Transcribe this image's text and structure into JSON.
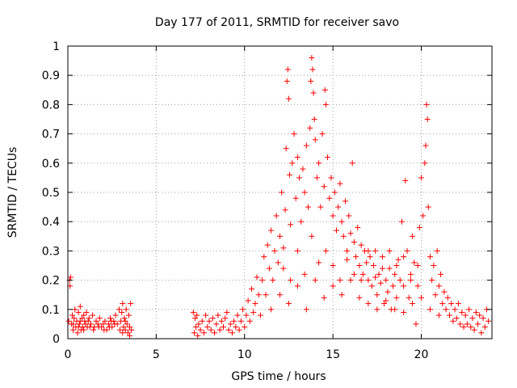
{
  "chart_data": {
    "type": "scatter",
    "title": "Day 177 of 2011, SRMTID for receiver savo",
    "xlabel": "GPS time / hours",
    "ylabel": "SRMTID / TECUs",
    "xlim": [
      0,
      24
    ],
    "ylim": [
      0,
      1
    ],
    "xticks": [
      0,
      5,
      10,
      15,
      20
    ],
    "yticks": [
      0,
      0.1,
      0.2,
      0.3,
      0.4,
      0.5,
      0.6,
      0.7,
      0.8,
      0.9,
      1
    ],
    "grid": true,
    "marker": "+",
    "color": "#ff0000",
    "series": [
      {
        "name": "SRMTID",
        "points": [
          [
            0.05,
            0.06
          ],
          [
            0.1,
            0.2
          ],
          [
            0.12,
            0.18
          ],
          [
            0.15,
            0.21
          ],
          [
            0.2,
            0.05
          ],
          [
            0.25,
            0.08
          ],
          [
            0.3,
            0.03
          ],
          [
            0.35,
            0.07
          ],
          [
            0.4,
            0.1
          ],
          [
            0.45,
            0.04
          ],
          [
            0.5,
            0.06
          ],
          [
            0.55,
            0.02
          ],
          [
            0.6,
            0.09
          ],
          [
            0.65,
            0.05
          ],
          [
            0.7,
            0.11
          ],
          [
            0.75,
            0.03
          ],
          [
            0.8,
            0.07
          ],
          [
            0.85,
            0.04
          ],
          [
            0.9,
            0.08
          ],
          [
            0.95,
            0.06
          ],
          [
            1.0,
            0.05
          ],
          [
            1.05,
            0.09
          ],
          [
            1.1,
            0.04
          ],
          [
            1.2,
            0.07
          ],
          [
            1.3,
            0.05
          ],
          [
            1.4,
            0.08
          ],
          [
            1.5,
            0.04
          ],
          [
            1.6,
            0.06
          ],
          [
            1.7,
            0.05
          ],
          [
            1.8,
            0.07
          ],
          [
            1.9,
            0.04
          ],
          [
            2.0,
            0.05
          ],
          [
            2.1,
            0.06
          ],
          [
            2.2,
            0.03
          ],
          [
            2.3,
            0.05
          ],
          [
            2.4,
            0.07
          ],
          [
            2.5,
            0.04
          ],
          [
            2.6,
            0.06
          ],
          [
            2.7,
            0.08
          ],
          [
            2.8,
            0.05
          ],
          [
            2.9,
            0.1
          ],
          [
            3.0,
            0.06
          ],
          [
            3.05,
            0.09
          ],
          [
            3.1,
            0.12
          ],
          [
            3.15,
            0.04
          ],
          [
            3.2,
            0.07
          ],
          [
            3.25,
            0.03
          ],
          [
            3.3,
            0.1
          ],
          [
            3.35,
            0.05
          ],
          [
            3.4,
            0.02
          ],
          [
            3.45,
            0.08
          ],
          [
            3.5,
            0.01
          ],
          [
            3.55,
            0.12
          ],
          [
            3.6,
            0.03
          ],
          [
            0.3,
            0.05
          ],
          [
            0.6,
            0.04
          ],
          [
            0.9,
            0.03
          ],
          [
            1.15,
            0.06
          ],
          [
            1.45,
            0.03
          ],
          [
            1.75,
            0.04
          ],
          [
            2.05,
            0.03
          ],
          [
            2.35,
            0.04
          ],
          [
            2.65,
            0.05
          ],
          [
            2.95,
            0.03
          ],
          [
            3.25,
            0.06
          ],
          [
            3.5,
            0.04
          ],
          [
            0.7,
            0.06
          ],
          [
            1.25,
            0.04
          ],
          [
            2.45,
            0.06
          ],
          [
            3.1,
            0.02
          ],
          [
            7.1,
            0.09
          ],
          [
            7.15,
            0.02
          ],
          [
            7.2,
            0.07
          ],
          [
            7.25,
            0.04
          ],
          [
            7.3,
            0.08
          ],
          [
            7.35,
            0.01
          ],
          [
            7.4,
            0.05
          ],
          [
            7.5,
            0.03
          ],
          [
            7.6,
            0.06
          ],
          [
            7.7,
            0.02
          ],
          [
            7.8,
            0.08
          ],
          [
            7.9,
            0.04
          ],
          [
            8.0,
            0.06
          ],
          [
            8.1,
            0.03
          ],
          [
            8.2,
            0.07
          ],
          [
            8.3,
            0.02
          ],
          [
            8.4,
            0.05
          ],
          [
            8.5,
            0.08
          ],
          [
            8.6,
            0.03
          ],
          [
            8.7,
            0.06
          ],
          [
            8.8,
            0.04
          ],
          [
            8.9,
            0.07
          ],
          [
            9.0,
            0.09
          ],
          [
            9.1,
            0.03
          ],
          [
            9.2,
            0.05
          ],
          [
            9.3,
            0.02
          ],
          [
            9.4,
            0.06
          ],
          [
            9.5,
            0.04
          ],
          [
            9.6,
            0.08
          ],
          [
            9.7,
            0.03
          ],
          [
            9.8,
            0.06
          ],
          [
            9.9,
            0.1
          ],
          [
            10.0,
            0.04
          ],
          [
            10.1,
            0.08
          ],
          [
            10.2,
            0.13
          ],
          [
            10.3,
            0.06
          ],
          [
            10.4,
            0.17
          ],
          [
            10.5,
            0.09
          ],
          [
            10.6,
            0.12
          ],
          [
            10.7,
            0.21
          ],
          [
            10.8,
            0.15
          ],
          [
            10.9,
            0.08
          ],
          [
            11.0,
            0.2
          ],
          [
            11.1,
            0.28
          ],
          [
            11.2,
            0.15
          ],
          [
            11.3,
            0.32
          ],
          [
            11.4,
            0.24
          ],
          [
            11.5,
            0.37
          ],
          [
            11.6,
            0.2
          ],
          [
            11.7,
            0.3
          ],
          [
            11.8,
            0.42
          ],
          [
            11.9,
            0.26
          ],
          [
            12.0,
            0.35
          ],
          [
            12.1,
            0.5
          ],
          [
            12.2,
            0.31
          ],
          [
            12.3,
            0.44
          ],
          [
            12.35,
            0.65
          ],
          [
            12.4,
            0.88
          ],
          [
            12.45,
            0.92
          ],
          [
            12.5,
            0.82
          ],
          [
            12.55,
            0.56
          ],
          [
            12.6,
            0.39
          ],
          [
            12.7,
            0.6
          ],
          [
            12.8,
            0.7
          ],
          [
            12.9,
            0.48
          ],
          [
            13.0,
            0.62
          ],
          [
            13.1,
            0.55
          ],
          [
            13.2,
            0.4
          ],
          [
            13.3,
            0.58
          ],
          [
            13.4,
            0.5
          ],
          [
            13.5,
            0.66
          ],
          [
            13.6,
            0.45
          ],
          [
            13.7,
            0.72
          ],
          [
            13.75,
            0.88
          ],
          [
            13.8,
            0.96
          ],
          [
            13.85,
            0.92
          ],
          [
            13.9,
            0.84
          ],
          [
            13.95,
            0.75
          ],
          [
            14.0,
            0.68
          ],
          [
            14.1,
            0.55
          ],
          [
            14.2,
            0.6
          ],
          [
            14.3,
            0.45
          ],
          [
            14.4,
            0.7
          ],
          [
            14.5,
            0.52
          ],
          [
            14.55,
            0.85
          ],
          [
            14.6,
            0.8
          ],
          [
            14.7,
            0.62
          ],
          [
            14.8,
            0.48
          ],
          [
            14.9,
            0.55
          ],
          [
            15.0,
            0.42
          ],
          [
            15.1,
            0.5
          ],
          [
            15.2,
            0.37
          ],
          [
            15.3,
            0.45
          ],
          [
            15.4,
            0.53
          ],
          [
            15.5,
            0.4
          ],
          [
            15.6,
            0.35
          ],
          [
            15.7,
            0.47
          ],
          [
            15.8,
            0.3
          ],
          [
            15.9,
            0.42
          ],
          [
            16.0,
            0.36
          ],
          [
            16.1,
            0.6
          ],
          [
            16.2,
            0.33
          ],
          [
            16.3,
            0.28
          ],
          [
            16.4,
            0.38
          ],
          [
            16.5,
            0.25
          ],
          [
            16.6,
            0.32
          ],
          [
            16.7,
            0.22
          ],
          [
            16.8,
            0.3
          ],
          [
            16.9,
            0.26
          ],
          [
            17.0,
            0.2
          ],
          [
            17.1,
            0.28
          ],
          [
            17.2,
            0.18
          ],
          [
            17.3,
            0.25
          ],
          [
            17.4,
            0.3
          ],
          [
            17.5,
            0.15
          ],
          [
            17.6,
            0.22
          ],
          [
            17.7,
            0.19
          ],
          [
            17.8,
            0.24
          ],
          [
            17.9,
            0.12
          ],
          [
            18.0,
            0.2
          ],
          [
            18.1,
            0.16
          ],
          [
            18.2,
            0.24
          ],
          [
            18.3,
            0.1
          ],
          [
            18.4,
            0.18
          ],
          [
            18.5,
            0.22
          ],
          [
            18.6,
            0.14
          ],
          [
            18.7,
            0.27
          ],
          [
            18.8,
            0.2
          ],
          [
            18.9,
            0.4
          ],
          [
            19.0,
            0.18
          ],
          [
            19.1,
            0.54
          ],
          [
            19.2,
            0.3
          ],
          [
            19.3,
            0.14
          ],
          [
            19.4,
            0.22
          ],
          [
            19.5,
            0.35
          ],
          [
            19.6,
            0.26
          ],
          [
            19.7,
            0.05
          ],
          [
            19.8,
            0.18
          ],
          [
            19.9,
            0.38
          ],
          [
            20.0,
            0.55
          ],
          [
            20.1,
            0.42
          ],
          [
            20.2,
            0.6
          ],
          [
            20.25,
            0.66
          ],
          [
            20.3,
            0.8
          ],
          [
            20.35,
            0.75
          ],
          [
            20.4,
            0.45
          ],
          [
            20.5,
            0.28
          ],
          [
            20.6,
            0.2
          ],
          [
            20.7,
            0.25
          ],
          [
            20.8,
            0.15
          ],
          [
            20.9,
            0.3
          ],
          [
            21.0,
            0.18
          ],
          [
            21.1,
            0.22
          ],
          [
            21.2,
            0.12
          ],
          [
            21.3,
            0.16
          ],
          [
            21.4,
            0.1
          ],
          [
            21.5,
            0.14
          ],
          [
            21.6,
            0.08
          ],
          [
            21.7,
            0.12
          ],
          [
            21.8,
            0.06
          ],
          [
            21.9,
            0.1
          ],
          [
            22.0,
            0.07
          ],
          [
            22.1,
            0.12
          ],
          [
            22.2,
            0.05
          ],
          [
            22.3,
            0.09
          ],
          [
            22.4,
            0.04
          ],
          [
            22.5,
            0.08
          ],
          [
            22.6,
            0.05
          ],
          [
            22.7,
            0.1
          ],
          [
            22.8,
            0.04
          ],
          [
            22.9,
            0.07
          ],
          [
            23.0,
            0.03
          ],
          [
            23.1,
            0.09
          ],
          [
            23.2,
            0.05
          ],
          [
            23.3,
            0.08
          ],
          [
            23.4,
            0.02
          ],
          [
            23.5,
            0.07
          ],
          [
            23.6,
            0.04
          ],
          [
            23.7,
            0.1
          ],
          [
            23.8,
            0.06
          ],
          [
            12.2,
            0.24
          ],
          [
            12.6,
            0.2
          ],
          [
            13.0,
            0.3
          ],
          [
            13.4,
            0.22
          ],
          [
            13.8,
            0.35
          ],
          [
            14.2,
            0.26
          ],
          [
            14.6,
            0.3
          ],
          [
            15.0,
            0.25
          ],
          [
            15.4,
            0.2
          ],
          [
            15.8,
            0.27
          ],
          [
            16.2,
            0.22
          ],
          [
            16.6,
            0.2
          ],
          [
            17.0,
            0.3
          ],
          [
            17.4,
            0.21
          ],
          [
            17.8,
            0.28
          ],
          [
            18.2,
            0.3
          ],
          [
            18.6,
            0.25
          ],
          [
            19.0,
            0.28
          ],
          [
            19.4,
            0.2
          ],
          [
            19.8,
            0.25
          ],
          [
            11.5,
            0.1
          ],
          [
            12.0,
            0.15
          ],
          [
            12.5,
            0.12
          ],
          [
            13.0,
            0.18
          ],
          [
            13.5,
            0.1
          ],
          [
            14.0,
            0.2
          ],
          [
            14.5,
            0.14
          ],
          [
            15.0,
            0.18
          ],
          [
            15.5,
            0.15
          ],
          [
            16.0,
            0.2
          ],
          [
            16.5,
            0.14
          ],
          [
            17.0,
            0.12
          ],
          [
            17.5,
            0.1
          ],
          [
            18.0,
            0.13
          ],
          [
            18.5,
            0.1
          ],
          [
            19.0,
            0.09
          ],
          [
            19.5,
            0.12
          ],
          [
            20.0,
            0.14
          ],
          [
            20.5,
            0.1
          ],
          [
            21.0,
            0.08
          ]
        ]
      }
    ]
  }
}
